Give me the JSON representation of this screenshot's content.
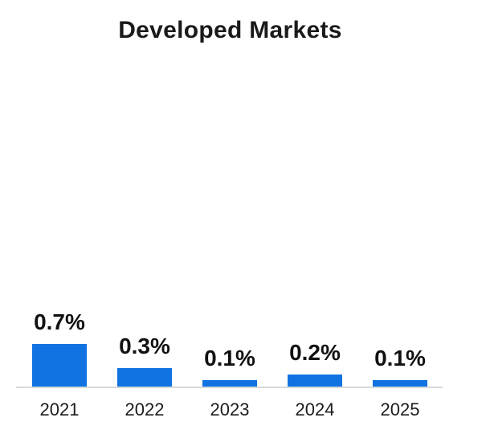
{
  "chart_data": {
    "type": "bar",
    "title": "Developed Markets",
    "categories": [
      "2021",
      "2022",
      "2023",
      "2024",
      "2025"
    ],
    "values": [
      0.7,
      0.3,
      0.1,
      0.2,
      0.1
    ],
    "labels": [
      "0.7%",
      "0.3%",
      "0.1%",
      "0.2%",
      "0.1%"
    ],
    "xlabel": "",
    "ylabel": "",
    "ylim": [
      0,
      0.75
    ],
    "grid": false,
    "legend": false,
    "data_labels_position": "above-bars",
    "bar_color": "#1173E2",
    "axis_line_color": "#D8D8D8",
    "title_color": "#1A1A1A",
    "label_color": "#111111",
    "tick_color": "#1C1C1C"
  }
}
